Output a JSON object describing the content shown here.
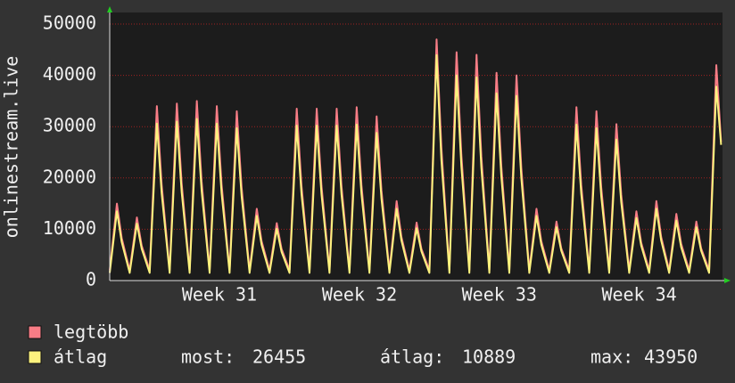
{
  "chart_data": {
    "type": "line",
    "y_label": "onlinestream.live",
    "xlim": [
      0,
      30.67
    ],
    "xticks": [
      {
        "value": 5.49,
        "label": "Week 31"
      },
      {
        "value": 12.5,
        "label": "Week 32"
      },
      {
        "value": 19.5,
        "label": "Week 33"
      },
      {
        "value": 26.5,
        "label": "Week 34"
      }
    ],
    "ylim": [
      0,
      50000
    ],
    "yticks": [
      0,
      10000,
      20000,
      30000,
      40000,
      50000
    ],
    "grid": true,
    "x": [
      0,
      0.36,
      0.6,
      1,
      1.36,
      1.6,
      2,
      2.36,
      2.6,
      3,
      3.36,
      3.6,
      4,
      4.36,
      4.6,
      5,
      5.36,
      5.6,
      6,
      6.36,
      6.6,
      7,
      7.36,
      7.6,
      8,
      8.36,
      8.6,
      9,
      9.36,
      9.6,
      10,
      10.36,
      10.6,
      11,
      11.36,
      11.6,
      12,
      12.36,
      12.6,
      13,
      13.36,
      13.6,
      14,
      14.36,
      14.6,
      15,
      15.36,
      15.6,
      16,
      16.36,
      16.6,
      17,
      17.36,
      17.6,
      18,
      18.36,
      18.6,
      19,
      19.36,
      19.6,
      20,
      20.36,
      20.6,
      21,
      21.36,
      21.6,
      22,
      22.36,
      22.6,
      23,
      23.36,
      23.6,
      24,
      24.36,
      24.6,
      25,
      25.36,
      25.6,
      26,
      26.36,
      26.6,
      27,
      27.36,
      27.6,
      28,
      28.36,
      28.6,
      29,
      29.36,
      29.6,
      30,
      30.36,
      30.6
    ],
    "series": [
      {
        "name": "legtöbb",
        "color": "#f87d86",
        "values": [
          2000,
          15000,
          8300,
          2000,
          12300,
          6800,
          2000,
          34000,
          18700,
          2000,
          34500,
          19000,
          2000,
          35000,
          19300,
          2000,
          34000,
          18700,
          2000,
          33000,
          18200,
          2000,
          14000,
          7700,
          2000,
          11200,
          6200,
          2000,
          33500,
          18400,
          2000,
          33500,
          18400,
          2000,
          33500,
          18400,
          2000,
          33800,
          18600,
          2000,
          32000,
          17600,
          2000,
          15500,
          8500,
          2000,
          11300,
          6200,
          2000,
          47000,
          25900,
          2000,
          44500,
          24500,
          2000,
          44000,
          24200,
          2000,
          40500,
          22300,
          2000,
          40000,
          22000,
          2000,
          14000,
          7700,
          2000,
          11500,
          6300,
          2000,
          33800,
          18600,
          2000,
          33000,
          18200,
          2000,
          30500,
          16800,
          2000,
          13500,
          7400,
          2000,
          15500,
          8500,
          2000,
          13000,
          7200,
          2000,
          11500,
          6300,
          2000,
          42000,
          27000
        ]
      },
      {
        "name": "átlag",
        "color": "#fdf27e",
        "values": [
          1500,
          13500,
          7500,
          1500,
          11100,
          6200,
          1500,
          30600,
          17000,
          1500,
          31000,
          17300,
          1500,
          31500,
          17500,
          1500,
          30600,
          17000,
          1500,
          29700,
          16500,
          1500,
          12600,
          7000,
          1500,
          10100,
          5600,
          1500,
          30200,
          16800,
          1500,
          30200,
          16800,
          1500,
          30200,
          16800,
          1500,
          30400,
          16900,
          1500,
          28800,
          16000,
          1500,
          14000,
          7800,
          1500,
          10200,
          5700,
          1500,
          43950,
          23500,
          1500,
          40000,
          22300,
          1500,
          39600,
          22000,
          1500,
          36500,
          20300,
          1500,
          36000,
          20000,
          1500,
          12600,
          7000,
          1500,
          10400,
          5800,
          1500,
          30400,
          16900,
          1500,
          29700,
          16500,
          1500,
          27500,
          15300,
          1500,
          12200,
          6800,
          1500,
          14000,
          7800,
          1500,
          11700,
          6500,
          1500,
          10400,
          5800,
          1500,
          37800,
          26455
        ]
      }
    ],
    "summary": [
      {
        "label": "most:",
        "value": 26455
      },
      {
        "label": "átlag:",
        "value": 10889
      },
      {
        "label": "max:",
        "value": 43950
      }
    ]
  }
}
